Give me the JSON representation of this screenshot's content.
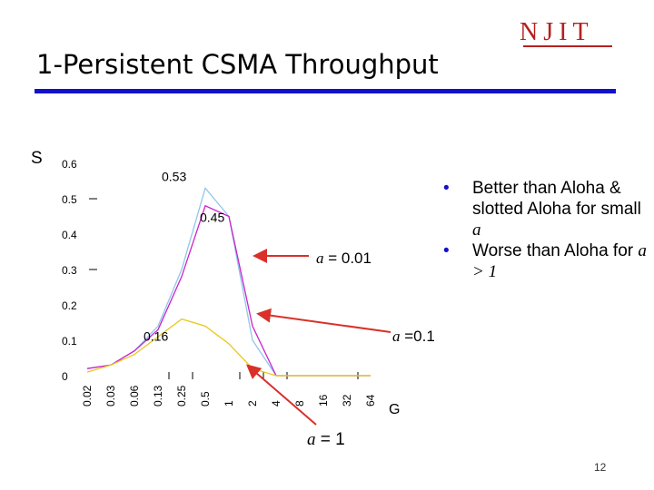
{
  "slide": {
    "title": "1-Persistent CSMA Throughput",
    "logo": "NJIT",
    "page_number": "12",
    "bullets": [
      {
        "text": "Better than Aloha & slotted Aloha for small ",
        "italic": "a"
      },
      {
        "text": "Worse than Aloha for ",
        "italic": "a > 1"
      }
    ]
  },
  "chart_data": {
    "type": "line",
    "ylabel": "S",
    "xlabel": "G",
    "ylim": [
      0,
      0.6
    ],
    "y_ticks": [
      "0",
      "0.1",
      "0.2",
      "0.3",
      "0.4",
      "0.5",
      "0.6"
    ],
    "x_ticks": [
      "0.02",
      "0.03",
      "0.06",
      "0.13",
      "0.25",
      "0.5",
      "1",
      "2",
      "4",
      "8",
      "16",
      "32",
      "64"
    ],
    "grid": false,
    "series": [
      {
        "name": "a = 0.01",
        "color": "#8ec8e8",
        "values": [
          0.02,
          0.03,
          0.07,
          0.14,
          0.3,
          0.53,
          0.45,
          0.1,
          0.0,
          0.0,
          0.0,
          0.0,
          0.0
        ]
      },
      {
        "name": "a =0.1",
        "color": "#cc22cc",
        "values": [
          0.02,
          0.03,
          0.07,
          0.13,
          0.28,
          0.48,
          0.45,
          0.14,
          0.0,
          0.0,
          0.0,
          0.0,
          0.0
        ]
      },
      {
        "name": "a = 1",
        "color": "#e8c81a",
        "values": [
          0.01,
          0.03,
          0.06,
          0.11,
          0.16,
          0.14,
          0.09,
          0.02,
          0.0,
          0.0,
          0.0,
          0.0,
          0.0
        ]
      }
    ],
    "annotations": [
      {
        "text": "0.53",
        "series": 0,
        "index": 5
      },
      {
        "text": "0.45",
        "series": 1,
        "index": 6
      },
      {
        "text": "0.16",
        "series": 2,
        "index": 4
      }
    ],
    "callouts": [
      {
        "text": "a = 0.01",
        "italic": "a",
        "rest": " = 0.01"
      },
      {
        "text": "a =0.1",
        "italic": "a",
        "rest": " =0.1"
      },
      {
        "text": "a = 1",
        "italic": "a",
        "rest": " = 1"
      }
    ],
    "arrow_color": "#d9302a"
  }
}
